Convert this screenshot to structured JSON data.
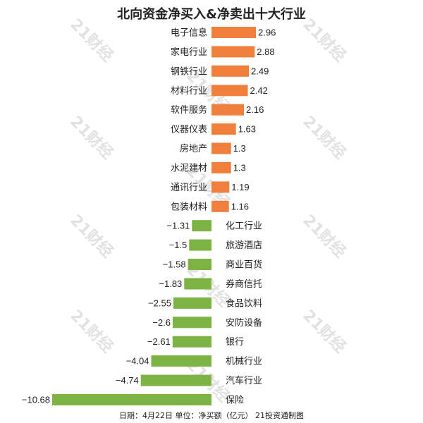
{
  "chart_data": {
    "type": "bar",
    "orientation": "horizontal",
    "title": "北向资金净买入&净卖出十大行业",
    "categories": [
      "电子信息",
      "家电行业",
      "钢铁行业",
      "材料行业",
      "软件服务",
      "仪器仪表",
      "房地产",
      "水泥建材",
      "通讯行业",
      "包装材料",
      "化工行业",
      "旅游酒店",
      "商业百货",
      "券商信托",
      "食品饮料",
      "安防设备",
      "银行",
      "机械行业",
      "汽车行业",
      "保险"
    ],
    "values": [
      2.96,
      2.88,
      2.49,
      2.42,
      2.16,
      1.63,
      1.3,
      1.3,
      1.19,
      1.16,
      -1.31,
      -1.5,
      -1.58,
      -1.83,
      -2.55,
      -2.6,
      -2.61,
      -4.04,
      -4.74,
      -10.68
    ],
    "value_labels": [
      "2.96",
      "2.88",
      "2.49",
      "2.42",
      "2.16",
      "1.63",
      "1.3",
      "1.3",
      "1.19",
      "1.16",
      "−1.31",
      "−1.5",
      "−1.58",
      "−1.83",
      "−2.55",
      "−2.6",
      "−2.61",
      "−4.04",
      "−4.74",
      "−10.68"
    ],
    "xlim": [
      -10.68,
      2.96
    ],
    "grid": false,
    "legend": "none",
    "colors": {
      "positive": "#f07f3c",
      "negative": "#7cb342"
    },
    "footer": "日期：4月22日 单位：净买额（亿元） 21投资通制图"
  },
  "watermark": {
    "text": "21财经",
    "color": "#e2e2e2"
  }
}
